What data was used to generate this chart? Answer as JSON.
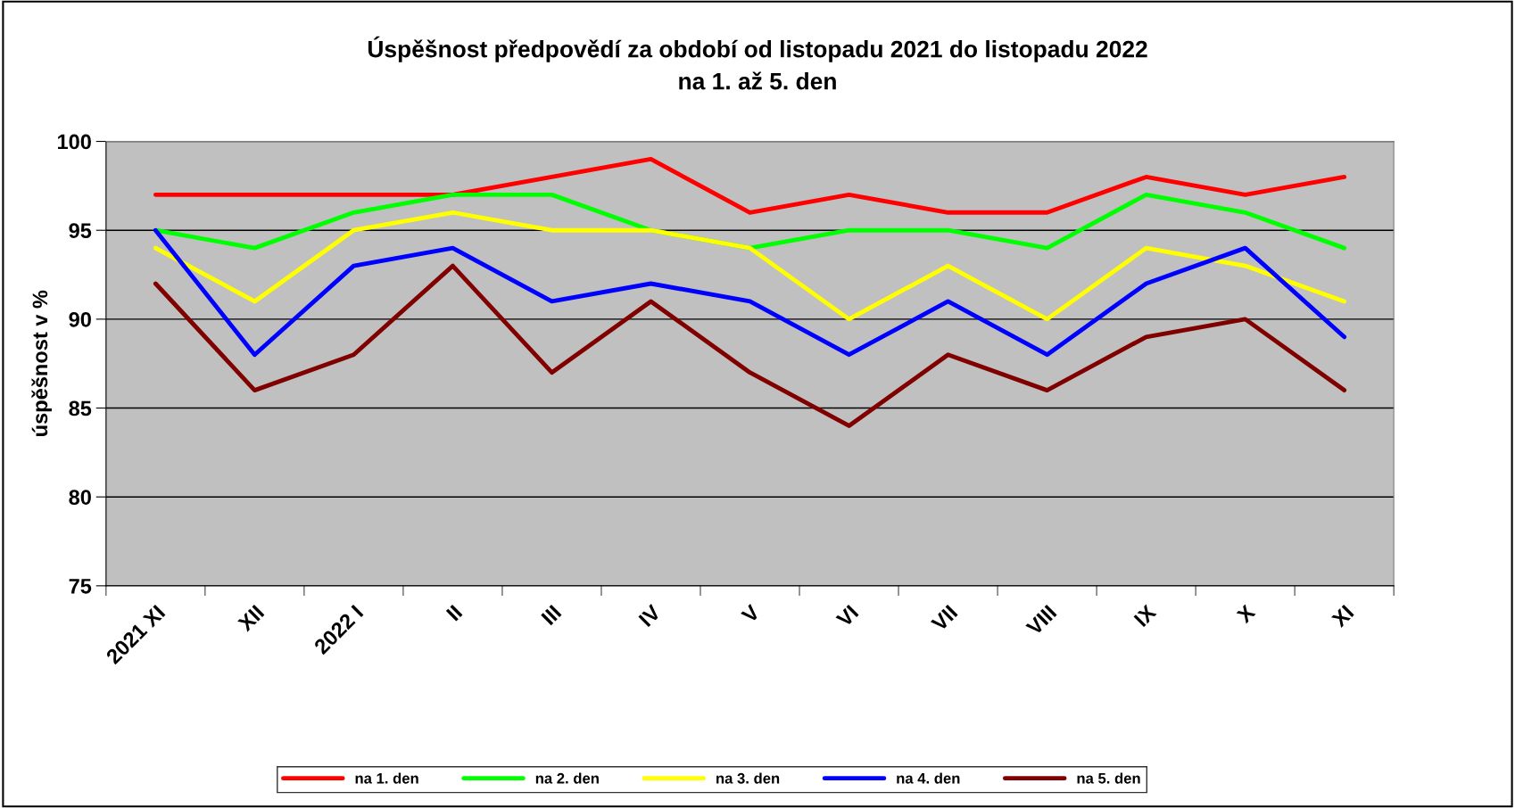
{
  "chart_data": {
    "type": "line",
    "title": "Úspěšnost předpovědí za období od listopadu 2021 do listopadu 2022\nna 1. až 5. den",
    "ylabel": "úspěšnost v %",
    "categories": [
      "2021 XI",
      "XII",
      "2022 I",
      "II",
      "III",
      "IV",
      "V",
      "VI",
      "VII",
      "VIII",
      "IX",
      "X",
      "XI"
    ],
    "series": [
      {
        "name": "na 1. den",
        "color": "#ff0000",
        "values": [
          97,
          97,
          97,
          97,
          98,
          99,
          96,
          97,
          96,
          96,
          98,
          97,
          98
        ]
      },
      {
        "name": "na 2. den",
        "color": "#00ff00",
        "values": [
          95,
          94,
          96,
          97,
          97,
          95,
          94,
          95,
          95,
          94,
          97,
          96,
          94
        ]
      },
      {
        "name": "na 3. den",
        "color": "#ffff00",
        "values": [
          94,
          91,
          95,
          96,
          95,
          95,
          94,
          90,
          93,
          90,
          94,
          93,
          91
        ]
      },
      {
        "name": "na 4. den",
        "color": "#0000ff",
        "values": [
          95,
          88,
          93,
          94,
          91,
          92,
          91,
          88,
          91,
          88,
          92,
          94,
          89
        ]
      },
      {
        "name": "na 5. den",
        "color": "#800000",
        "values": [
          92,
          86,
          88,
          93,
          87,
          91,
          87,
          84,
          88,
          86,
          89,
          90,
          86
        ]
      }
    ],
    "ylim": [
      75,
      100
    ],
    "yticks": [
      75,
      80,
      85,
      90,
      95,
      100
    ],
    "grid": "y",
    "legend": "bottom",
    "marker": "none",
    "line_style": "solid"
  }
}
